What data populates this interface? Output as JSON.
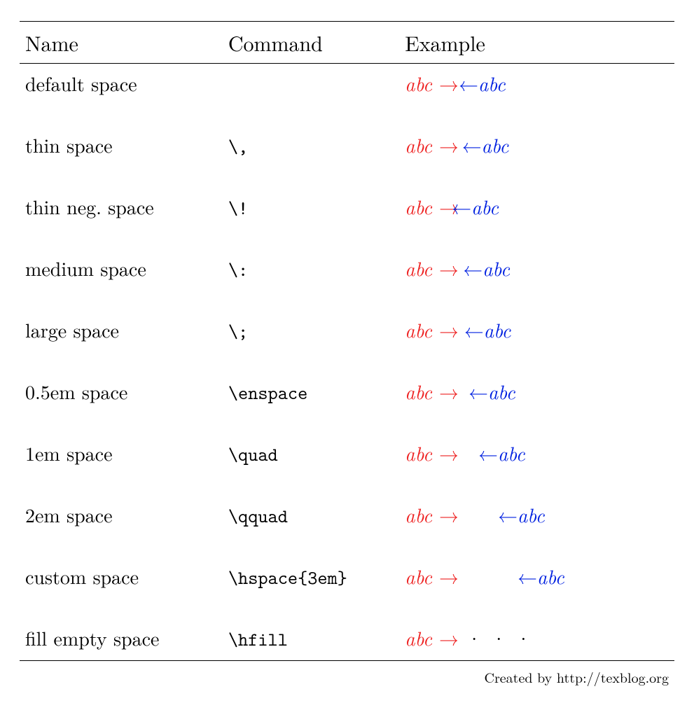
{
  "columns": {
    "name": "Name",
    "command": "Command",
    "example": "Example"
  },
  "sample_text": "abc",
  "arrow_right": "→",
  "arrow_left": "←",
  "dots": "· · ·",
  "colors": {
    "red": "#ee2222",
    "blue": "#0020e0",
    "rule": "#000000",
    "background": "#ffffff"
  },
  "rows": [
    {
      "name": "default space",
      "command": "",
      "space_em": 0.0,
      "neg": false,
      "fill": false
    },
    {
      "name": "thin space",
      "command": "\\,",
      "space_em": 0.167,
      "neg": false,
      "fill": false
    },
    {
      "name": "thin neg. space",
      "command": "\\!",
      "space_em": 0.0,
      "neg": true,
      "fill": false
    },
    {
      "name": "medium space",
      "command": "\\:",
      "space_em": 0.222,
      "neg": false,
      "fill": false
    },
    {
      "name": "large space",
      "command": "\\;",
      "space_em": 0.278,
      "neg": false,
      "fill": false
    },
    {
      "name": "0.5em space",
      "command": "\\enspace",
      "space_em": 0.5,
      "neg": false,
      "fill": false
    },
    {
      "name": "1em space",
      "command": "\\quad",
      "space_em": 1.0,
      "neg": false,
      "fill": false
    },
    {
      "name": "2em space",
      "command": "\\qquad",
      "space_em": 2.0,
      "neg": false,
      "fill": false
    },
    {
      "name": "custom space",
      "command": "\\hspace{3em}",
      "space_em": 3.0,
      "neg": false,
      "fill": false
    },
    {
      "name": "fill empty space",
      "command": "\\hfill",
      "space_em": 0.0,
      "neg": false,
      "fill": true
    }
  ],
  "credit": {
    "prefix": "Created by ",
    "url_text": "http://texblog.org"
  },
  "typography": {
    "body_fontsize": 28,
    "header_fontsize": 30,
    "mono_fontsize": 27,
    "credit_fontsize": 20
  }
}
